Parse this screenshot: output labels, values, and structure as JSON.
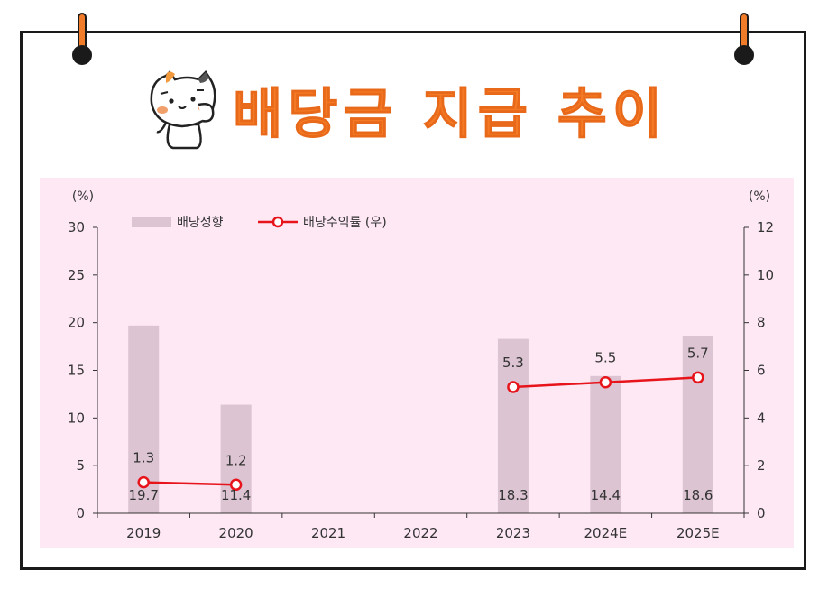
{
  "header": {
    "title": "배당금 지급 추이"
  },
  "colors": {
    "title": "#f47a25",
    "bar": "#dcc4d2",
    "line": "#e8141b",
    "background": "#fde8f4"
  },
  "icons": {
    "mascot": "cat-mascot-icon"
  },
  "chart_data": {
    "type": "bar",
    "categories": [
      "2019",
      "2020",
      "2021",
      "2022",
      "2023",
      "2024E",
      "2025E"
    ],
    "series": [
      {
        "name": "배당성향",
        "type": "bar",
        "axis": "left",
        "values": [
          19.7,
          11.4,
          null,
          null,
          18.3,
          14.4,
          18.6
        ],
        "labels": [
          "19.7",
          "11.4",
          "",
          "",
          "18.3",
          "14.4",
          "18.6"
        ]
      },
      {
        "name": "배당수익률 (우)",
        "type": "line",
        "axis": "right",
        "values": [
          1.3,
          1.2,
          null,
          null,
          5.3,
          5.5,
          5.7
        ],
        "labels": [
          "1.3",
          "1.2",
          "",
          "",
          "5.3",
          "5.5",
          "5.7"
        ]
      }
    ],
    "left_axis": {
      "unit": "(%)",
      "ylim": [
        0,
        30
      ],
      "ticks": [
        "0",
        "5",
        "10",
        "15",
        "20",
        "25",
        "30"
      ]
    },
    "right_axis": {
      "unit": "(%)",
      "ylim": [
        0,
        12
      ],
      "ticks": [
        "0",
        "2",
        "4",
        "6",
        "8",
        "10",
        "12"
      ]
    },
    "legend": {
      "placement": "top-left"
    },
    "grid": false
  }
}
